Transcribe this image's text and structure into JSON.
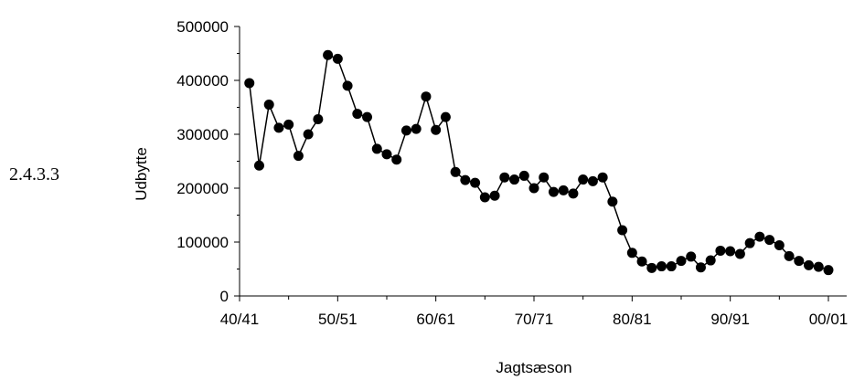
{
  "section_number": "2.4.3.3",
  "chart_data": {
    "type": "line",
    "title": "",
    "xlabel": "Jagtsæson",
    "ylabel": "Udbytte",
    "ylim": [
      0,
      500000
    ],
    "y_ticks": [
      0,
      100000,
      200000,
      300000,
      400000,
      500000
    ],
    "y_tick_labels": [
      "0",
      "100000",
      "200000",
      "300000",
      "400000",
      "500000"
    ],
    "x_tick_labels": [
      "40/41",
      "50/51",
      "60/61",
      "70/71",
      "80/81",
      "90/91",
      "00/01"
    ],
    "x_tick_years": [
      1940,
      1950,
      1960,
      1970,
      1980,
      1990,
      2000
    ],
    "grid": false,
    "legend": "none",
    "marker": "filled-circle",
    "line_color": "#000000",
    "series": [
      {
        "x": [
          1941,
          1942,
          1943,
          1944,
          1945,
          1946,
          1947,
          1948,
          1949,
          1950,
          1951,
          1952,
          1953,
          1954,
          1955,
          1956,
          1957,
          1958,
          1959,
          1960,
          1961,
          1962,
          1963,
          1964,
          1965,
          1966,
          1967,
          1968,
          1969,
          1970,
          1971,
          1972,
          1973,
          1974,
          1975,
          1976,
          1977,
          1978,
          1979,
          1980,
          1981,
          1982,
          1983,
          1984,
          1985,
          1986,
          1987,
          1988,
          1989,
          1990,
          1991,
          1992,
          1993,
          1994,
          1995,
          1996,
          1997,
          1998,
          1999,
          2000
        ],
        "values": [
          395000,
          242000,
          355000,
          312000,
          318000,
          260000,
          300000,
          328000,
          447000,
          440000,
          390000,
          338000,
          332000,
          273000,
          263000,
          253000,
          307000,
          310000,
          370000,
          308000,
          332000,
          230000,
          215000,
          210000,
          183000,
          186000,
          220000,
          216000,
          223000,
          200000,
          220000,
          193000,
          196000,
          190000,
          216000,
          213000,
          220000,
          175000,
          122000,
          80000,
          64000,
          52000,
          55000,
          55000,
          65000,
          73000,
          53000,
          66000,
          84000,
          83000,
          78000,
          98000,
          110000,
          104000,
          94000,
          74000,
          65000,
          57000,
          54000,
          48000
        ]
      }
    ]
  }
}
